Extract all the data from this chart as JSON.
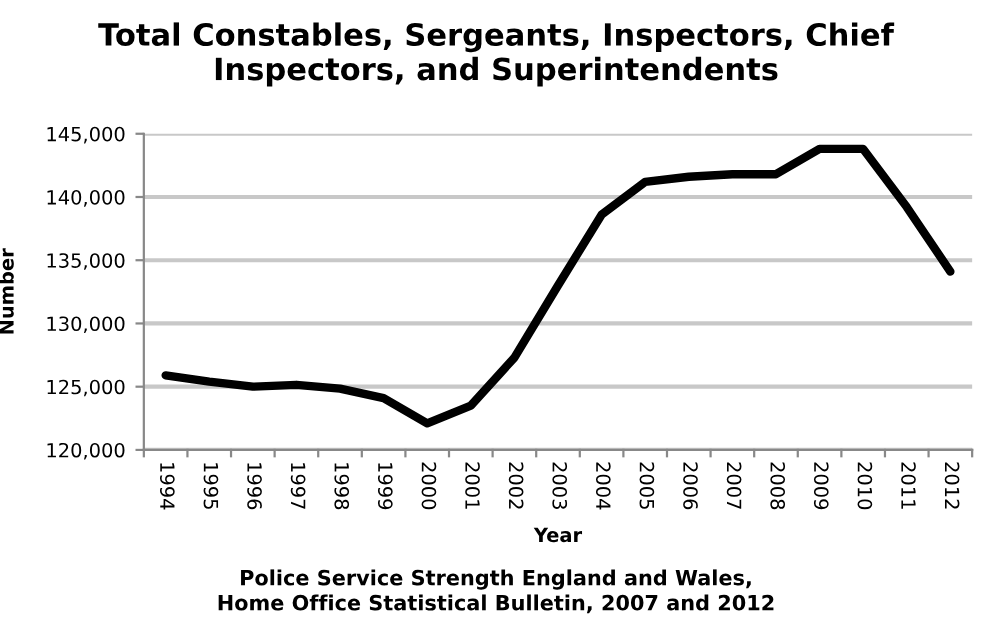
{
  "chart_data": {
    "type": "line",
    "title": "Total Constables, Sergeants, Inspectors, Chief Inspectors, and Superintendents",
    "xlabel": "Year",
    "ylabel": "Number",
    "categories": [
      "1994",
      "1995",
      "1996",
      "1997",
      "1998",
      "1999",
      "2000",
      "2001",
      "2002",
      "2003",
      "2004",
      "2005",
      "2006",
      "2007",
      "2008",
      "2009",
      "2010",
      "2011",
      "2012"
    ],
    "series": [
      {
        "color": "#000000",
        "values": [
          125900,
          125400,
          125000,
          125150,
          124850,
          124100,
          122100,
          123500,
          127300,
          133000,
          138600,
          141200,
          141600,
          141800,
          141800,
          143800,
          143800,
          139200,
          134100
        ]
      }
    ],
    "ylim": [
      120000,
      145000
    ],
    "yticks": [
      {
        "value": 120000,
        "label": "120,000"
      },
      {
        "value": 125000,
        "label": "125,000"
      },
      {
        "value": 130000,
        "label": "130,000"
      },
      {
        "value": 135000,
        "label": "135,000"
      },
      {
        "value": 140000,
        "label": "140,000"
      },
      {
        "value": 145000,
        "label": "145,000"
      }
    ],
    "grid": "y",
    "legend": false,
    "annotations": [
      "Police Service Strength England and Wales,\nHome Office Statistical Bulletin, 2007 and 2012"
    ]
  }
}
